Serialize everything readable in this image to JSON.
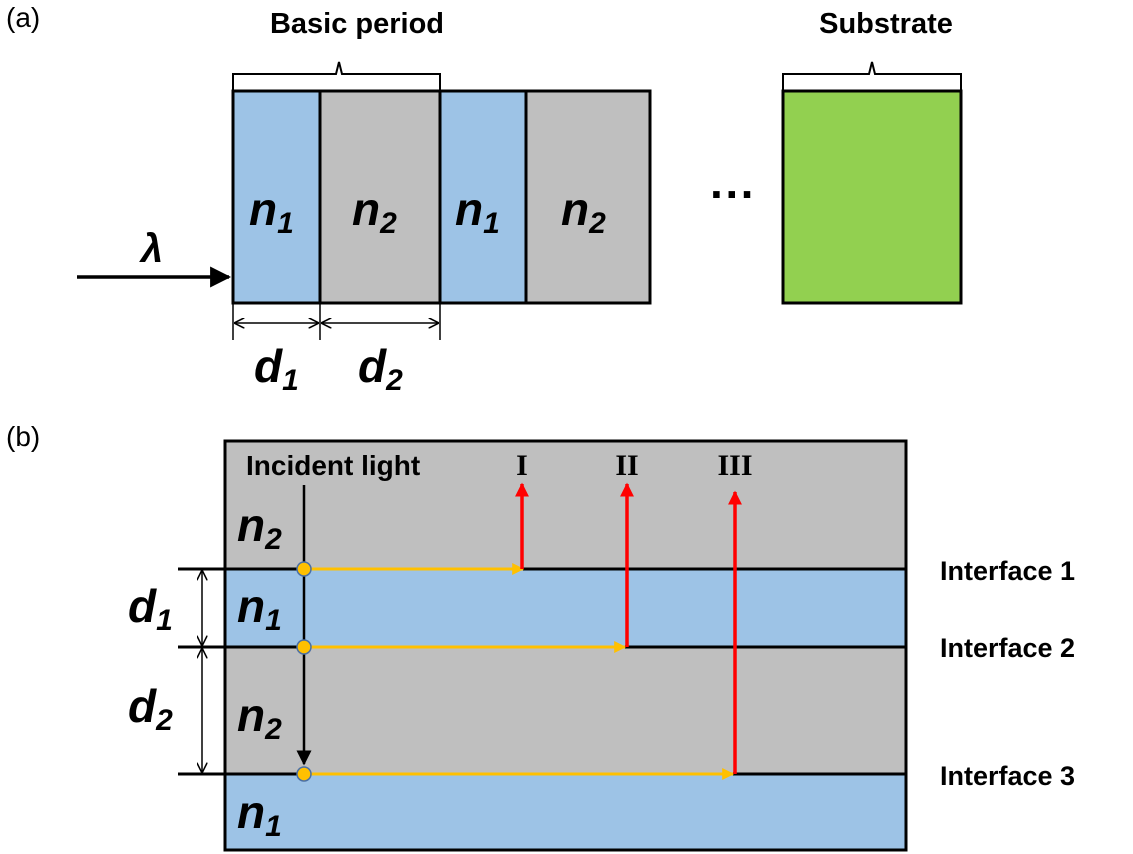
{
  "colors": {
    "n1_fill": "#9dc3e6",
    "n2_fill": "#bfbfbf",
    "substrate_fill": "#92d050",
    "reflection_arrow": "#ff0000",
    "propagation_arrow": "#ffc000",
    "outline": "#000000"
  },
  "panel_a": {
    "panel_label": "(a)",
    "basic_period_label": "Basic period",
    "substrate_label": "Substrate",
    "wavelength_symbol": "λ",
    "ellipsis": "···",
    "layers": [
      {
        "symbol": "n",
        "subscript": "1",
        "material": "n1"
      },
      {
        "symbol": "n",
        "subscript": "2",
        "material": "n2"
      },
      {
        "symbol": "n",
        "subscript": "1",
        "material": "n1"
      },
      {
        "symbol": "n",
        "subscript": "2",
        "material": "n2"
      }
    ],
    "thickness_labels": [
      {
        "symbol": "d",
        "subscript": "1"
      },
      {
        "symbol": "d",
        "subscript": "2"
      }
    ]
  },
  "panel_b": {
    "panel_label": "(b)",
    "incident_label": "Incident light",
    "layers": [
      {
        "symbol": "n",
        "subscript": "2",
        "material": "n2"
      },
      {
        "symbol": "n",
        "subscript": "1",
        "material": "n1"
      },
      {
        "symbol": "n",
        "subscript": "2",
        "material": "n2"
      },
      {
        "symbol": "n",
        "subscript": "1",
        "material": "n1"
      }
    ],
    "interfaces": [
      "Interface 1",
      "Interface 2",
      "Interface 3"
    ],
    "reflections": [
      "I",
      "II",
      "III"
    ],
    "thickness_labels": [
      {
        "symbol": "d",
        "subscript": "1"
      },
      {
        "symbol": "d",
        "subscript": "2"
      }
    ]
  }
}
